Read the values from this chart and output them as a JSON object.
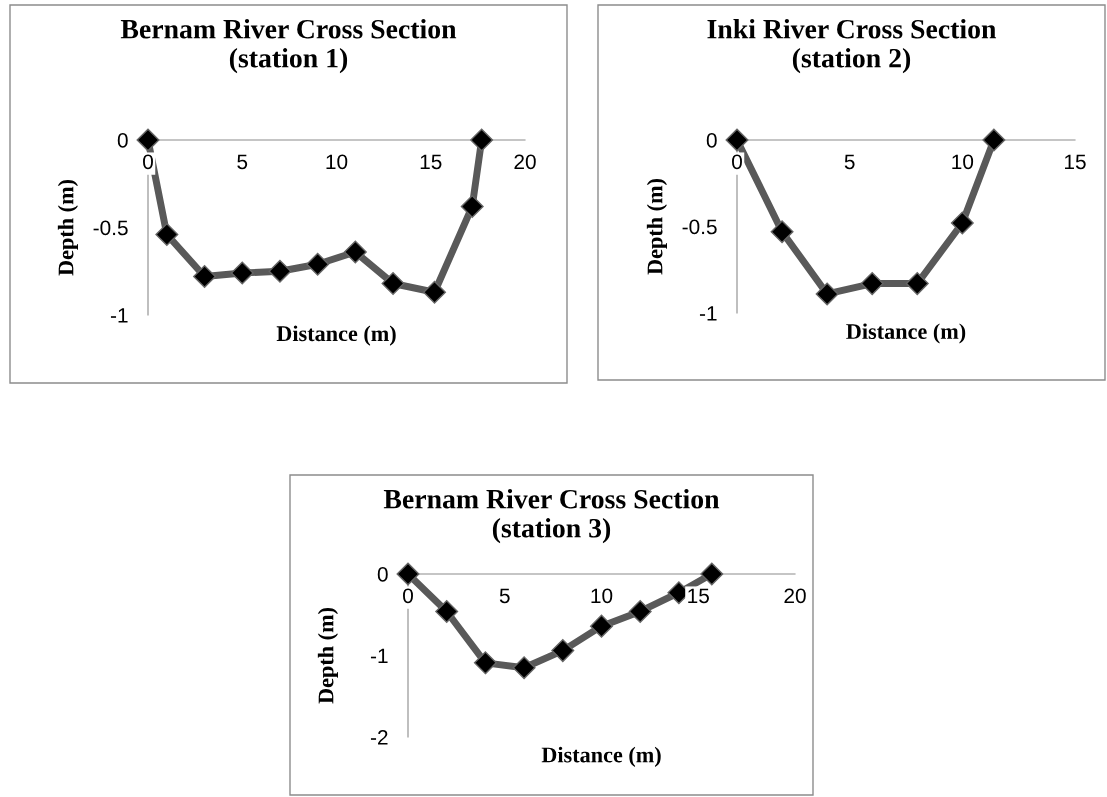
{
  "chart_data": [
    {
      "type": "line",
      "title": "Bernam River Cross Section\n(station 1)",
      "xlabel": "Distance (m)",
      "ylabel": "Depth (m)",
      "xlim": [
        0,
        20
      ],
      "ylim": [
        -1,
        0
      ],
      "xticks": [
        0,
        5,
        10,
        15,
        20
      ],
      "yticks": [
        -1,
        -0.5,
        0
      ],
      "marker": "diamond",
      "grid": false,
      "legend": false,
      "series": [
        {
          "color": "#595959",
          "x": [
            0,
            1,
            3,
            5,
            7,
            9,
            11,
            13,
            15.2,
            17.2,
            17.7
          ],
          "values": [
            0,
            -0.54,
            -0.78,
            -0.76,
            -0.75,
            -0.71,
            -0.64,
            -0.82,
            -0.87,
            -0.38,
            0
          ]
        }
      ]
    },
    {
      "type": "line",
      "title": "Inki River Cross Section\n(station 2)",
      "xlabel": "Distance (m)",
      "ylabel": "Depth (m)",
      "xlim": [
        0,
        15
      ],
      "ylim": [
        -1,
        0
      ],
      "xticks": [
        0,
        5,
        10,
        15
      ],
      "yticks": [
        -1,
        -0.5,
        0
      ],
      "marker": "diamond",
      "grid": false,
      "legend": false,
      "series": [
        {
          "color": "#595959",
          "x": [
            0,
            2,
            4,
            6,
            8,
            10,
            11.4
          ],
          "values": [
            0,
            -0.53,
            -0.89,
            -0.83,
            -0.83,
            -0.48,
            0
          ]
        }
      ]
    },
    {
      "type": "line",
      "title": "Bernam River Cross Section\n(station 3)",
      "xlabel": "Distance (m)",
      "ylabel": "Depth (m)",
      "xlim": [
        0,
        20
      ],
      "ylim": [
        -2,
        0
      ],
      "xticks": [
        0,
        5,
        10,
        15,
        20
      ],
      "yticks": [
        -2,
        -1,
        0
      ],
      "marker": "diamond",
      "grid": false,
      "legend": false,
      "series": [
        {
          "color": "#595959",
          "x": [
            0,
            2,
            4,
            6,
            8,
            10,
            12,
            14,
            15.7
          ],
          "values": [
            0,
            -0.46,
            -1.09,
            -1.15,
            -0.94,
            -0.64,
            -0.46,
            -0.23,
            0
          ]
        }
      ]
    }
  ]
}
